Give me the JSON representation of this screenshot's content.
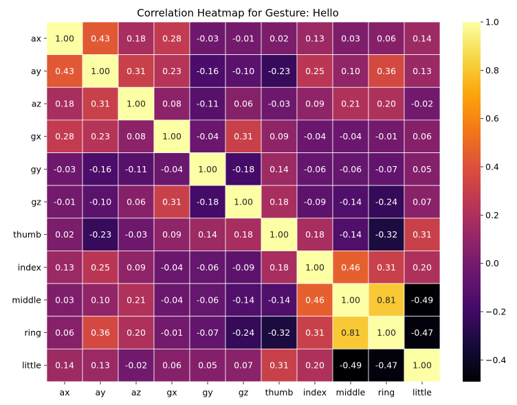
{
  "chart_data": {
    "type": "heatmap",
    "title": "Correlation Heatmap for Gesture: Hello",
    "x_labels": [
      "ax",
      "ay",
      "az",
      "gx",
      "gy",
      "gz",
      "thumb",
      "index",
      "middle",
      "ring",
      "little"
    ],
    "y_labels": [
      "ax",
      "ay",
      "az",
      "gx",
      "gy",
      "gz",
      "thumb",
      "index",
      "middle",
      "ring",
      "little"
    ],
    "values": [
      [
        1.0,
        0.43,
        0.18,
        0.28,
        -0.03,
        -0.01,
        0.02,
        0.13,
        0.03,
        0.06,
        0.14
      ],
      [
        0.43,
        1.0,
        0.31,
        0.23,
        -0.16,
        -0.1,
        -0.23,
        0.25,
        0.1,
        0.36,
        0.13
      ],
      [
        0.18,
        0.31,
        1.0,
        0.08,
        -0.11,
        0.06,
        -0.03,
        0.09,
        0.21,
        0.2,
        -0.02
      ],
      [
        0.28,
        0.23,
        0.08,
        1.0,
        -0.04,
        0.31,
        0.09,
        -0.04,
        -0.04,
        -0.01,
        0.06
      ],
      [
        -0.03,
        -0.16,
        -0.11,
        -0.04,
        1.0,
        -0.18,
        0.14,
        -0.06,
        -0.06,
        -0.07,
        0.05
      ],
      [
        -0.01,
        -0.1,
        0.06,
        0.31,
        -0.18,
        1.0,
        0.18,
        -0.09,
        -0.14,
        -0.24,
        0.07
      ],
      [
        0.02,
        -0.23,
        -0.03,
        0.09,
        0.14,
        0.18,
        1.0,
        0.18,
        -0.14,
        -0.32,
        0.31
      ],
      [
        0.13,
        0.25,
        0.09,
        -0.04,
        -0.06,
        -0.09,
        0.18,
        1.0,
        0.46,
        0.31,
        0.2
      ],
      [
        0.03,
        0.1,
        0.21,
        -0.04,
        -0.06,
        -0.14,
        -0.14,
        0.46,
        1.0,
        0.81,
        -0.49
      ],
      [
        0.06,
        0.36,
        0.2,
        -0.01,
        -0.07,
        -0.24,
        -0.32,
        0.31,
        0.81,
        1.0,
        -0.47
      ],
      [
        0.14,
        0.13,
        -0.02,
        0.06,
        0.05,
        0.07,
        0.31,
        0.2,
        -0.49,
        -0.47,
        1.0
      ]
    ],
    "colormap": "inferno",
    "vmin": -0.49,
    "vmax": 1.0,
    "annotate": true,
    "annotation_format": "0.00",
    "colorbar": {
      "ticks": [
        -0.4,
        -0.2,
        0.0,
        0.2,
        0.4,
        0.6,
        0.8,
        1.0
      ],
      "tick_labels": [
        "−0.4",
        "−0.2",
        "0.0",
        "0.2",
        "0.4",
        "0.6",
        "0.8",
        "1.0"
      ]
    },
    "cell_border_color": "#ffffff",
    "grid": false
  }
}
